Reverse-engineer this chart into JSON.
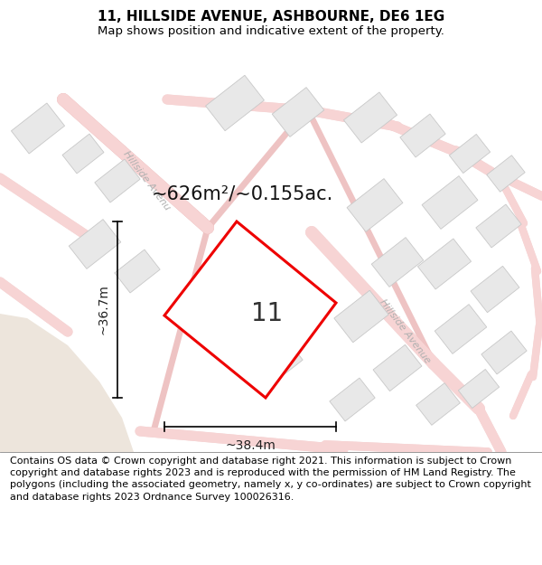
{
  "title": "11, HILLSIDE AVENUE, ASHBOURNE, DE6 1EG",
  "subtitle": "Map shows position and indicative extent of the property.",
  "area_label": "~626m²/~0.155ac.",
  "plot_number": "11",
  "width_label": "~38.4m",
  "height_label": "~36.7m",
  "footer": "Contains OS data © Crown copyright and database right 2021. This information is subject to Crown copyright and database rights 2023 and is reproduced with the permission of HM Land Registry. The polygons (including the associated geometry, namely x, y co-ordinates) are subject to Crown copyright and database rights 2023 Ordnance Survey 100026316.",
  "map_bg": "#ffffff",
  "road_fill": "#f7d4d4",
  "road_edge": "#e8aaaa",
  "building_fill": "#e8e8e8",
  "building_edge": "#c8c8c8",
  "plot_edge": "#ee0000",
  "beige_fill": "#ede5dc",
  "street_label_color": "#b0b0b0",
  "dim_color": "#222222",
  "area_label_color": "#111111",
  "plot_num_color": "#333333",
  "title_fontsize": 11,
  "subtitle_fontsize": 9.5,
  "area_fontsize": 15,
  "plot_num_fontsize": 20,
  "footer_fontsize": 8,
  "street_fontsize": 8
}
